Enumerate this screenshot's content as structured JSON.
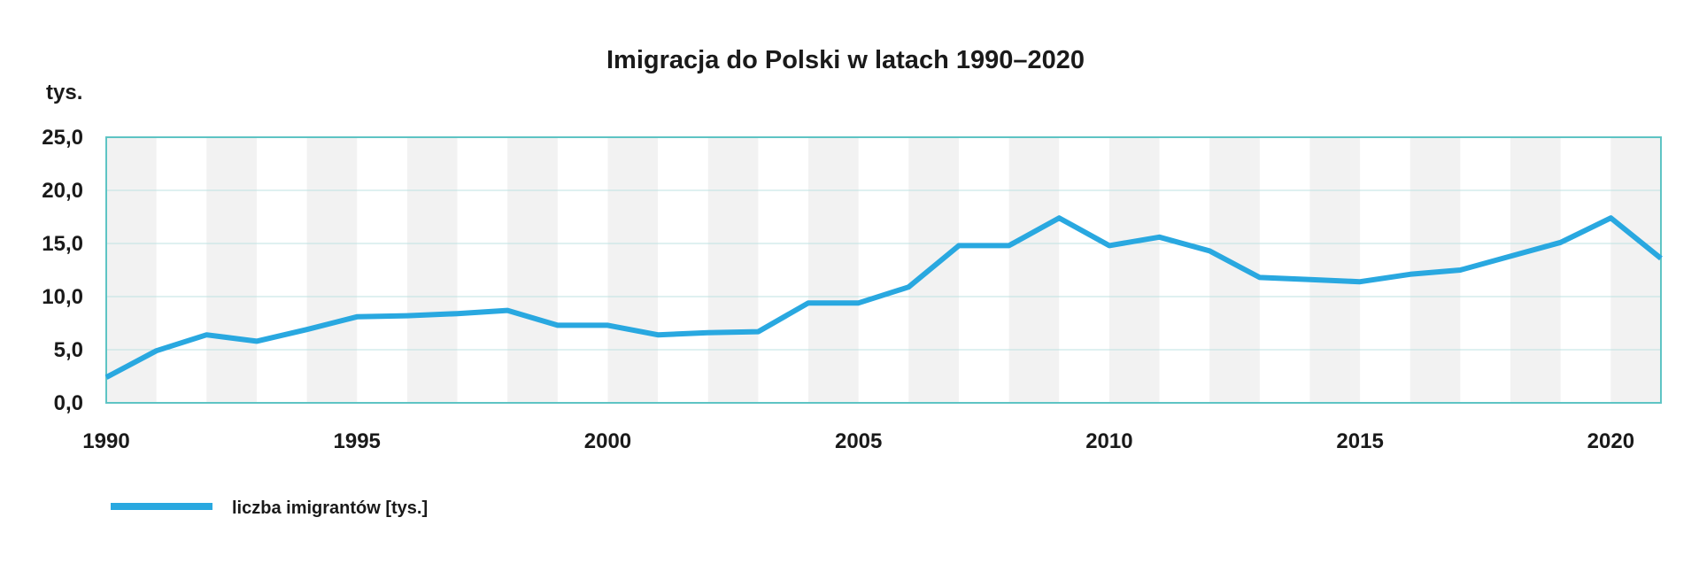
{
  "chart_data": {
    "type": "line",
    "title": "Imigracja do Polski w latach 1990–2020",
    "ylabel": "tys.",
    "ylim": [
      0,
      25
    ],
    "yticks": [
      "0,0",
      "5,0",
      "10,0",
      "15,0",
      "20,0",
      "25,0"
    ],
    "xlim": [
      1990,
      2021
    ],
    "xticks": [
      "1990",
      "1995",
      "2000",
      "2005",
      "2010",
      "2015",
      "2020"
    ],
    "grid": true,
    "legend_position": "bottom-left",
    "colors": {
      "line": "#29a8e0",
      "frame": "#5ec4c4",
      "band": "#f2f2f2",
      "gridline": "#bfe3e3"
    },
    "series": [
      {
        "name": "liczba imigrantów [tys.]",
        "x": [
          1990,
          1991,
          1992,
          1993,
          1994,
          1995,
          1996,
          1997,
          1998,
          1999,
          2000,
          2001,
          2002,
          2003,
          2004,
          2005,
          2006,
          2007,
          2008,
          2009,
          2010,
          2011,
          2012,
          2013,
          2014,
          2015,
          2016,
          2017,
          2018,
          2019,
          2020,
          2021
        ],
        "values": [
          2.4,
          4.9,
          6.4,
          5.8,
          6.9,
          8.1,
          8.2,
          8.4,
          8.7,
          7.3,
          7.3,
          6.4,
          6.6,
          6.7,
          9.4,
          9.4,
          10.9,
          14.8,
          14.8,
          17.4,
          14.8,
          15.6,
          14.3,
          11.8,
          11.6,
          11.4,
          12.1,
          12.5,
          13.8,
          15.1,
          17.4,
          13.6
        ]
      }
    ]
  }
}
